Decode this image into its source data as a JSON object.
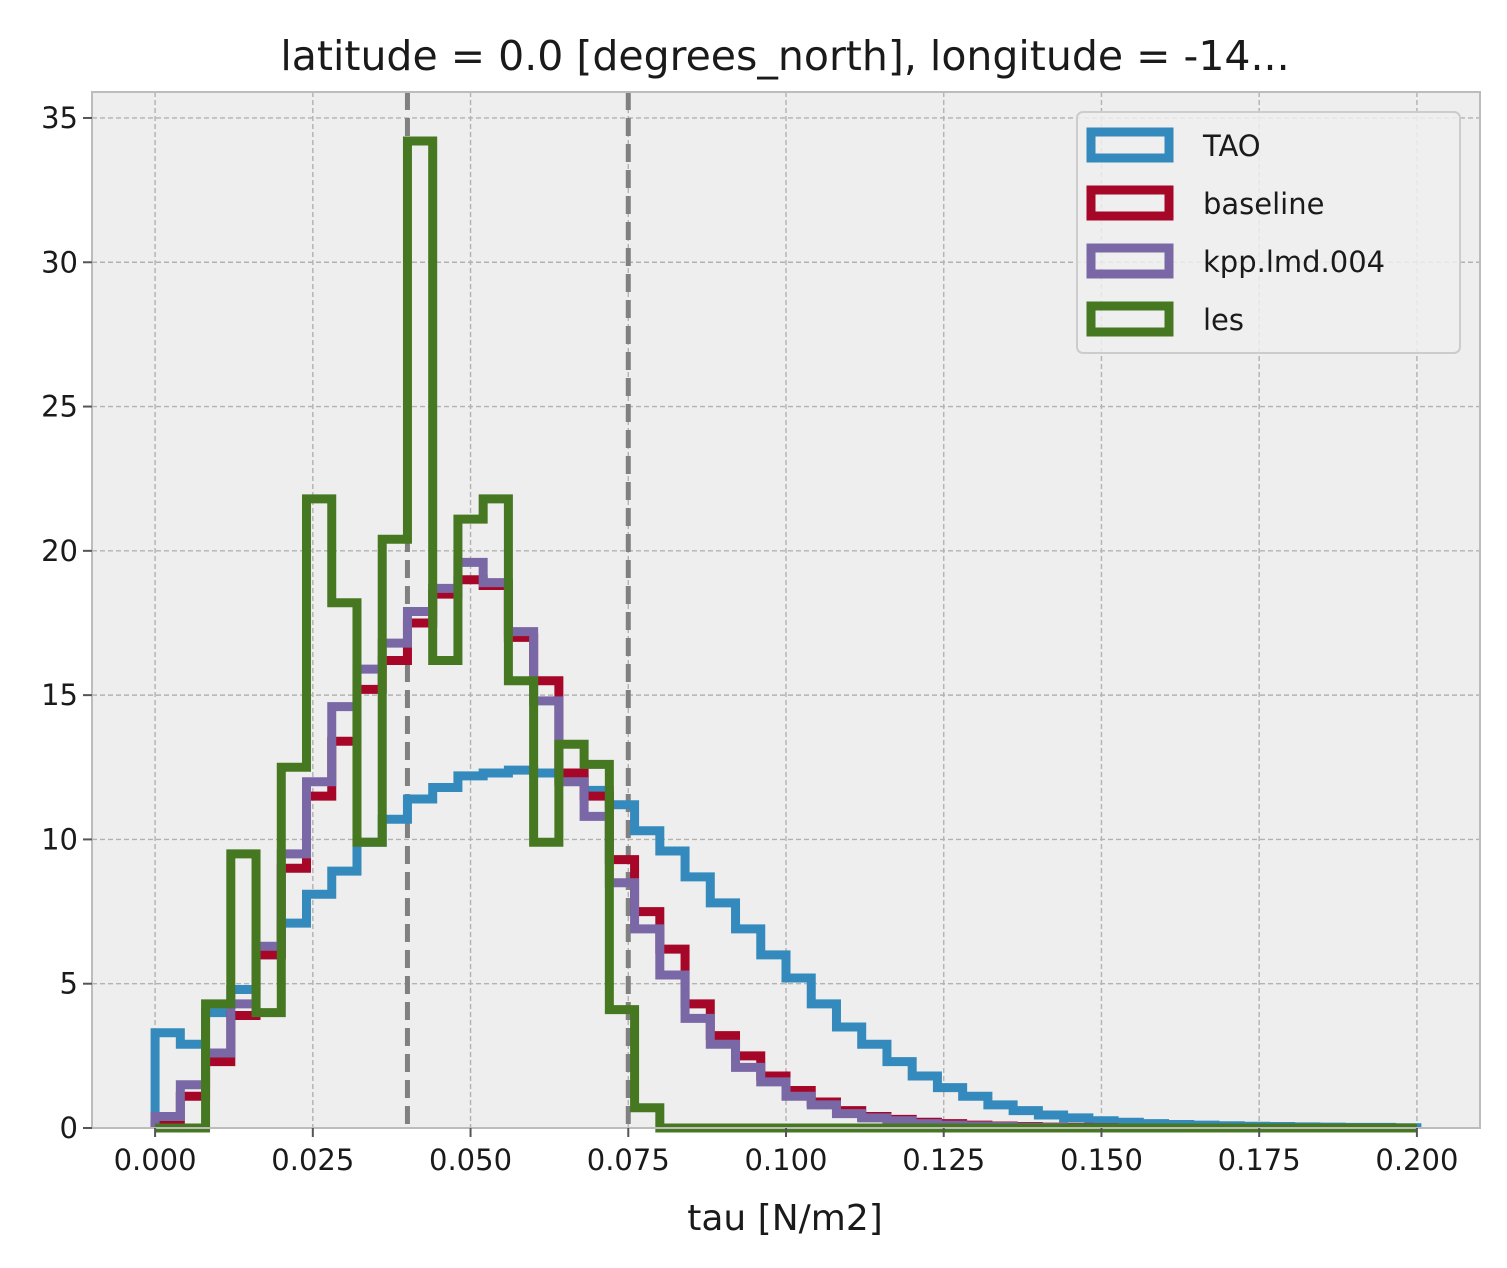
{
  "chart_data": {
    "type": "histogram",
    "title": "latitude = 0.0 [degrees_north], longitude = -14...",
    "xlabel": "tau [N/m2]",
    "ylabel": "",
    "xlim": [
      -0.01,
      0.21
    ],
    "ylim": [
      0,
      35.9
    ],
    "grid": true,
    "legend_position": "top-right",
    "x_ticks": [
      0.0,
      0.025,
      0.05,
      0.075,
      0.1,
      0.125,
      0.15,
      0.175,
      0.2
    ],
    "x_tick_labels": [
      "0.000",
      "0.025",
      "0.050",
      "0.075",
      "0.100",
      "0.125",
      "0.150",
      "0.175",
      "0.200"
    ],
    "y_ticks": [
      0,
      5,
      10,
      15,
      20,
      25,
      30,
      35
    ],
    "y_tick_labels": [
      "0",
      "5",
      "10",
      "15",
      "20",
      "25",
      "30",
      "35"
    ],
    "vlines": [
      0.04,
      0.075
    ],
    "vline_color": "#808080",
    "bin_width": 0.004,
    "bins_start": 0.0,
    "series": [
      {
        "name": "TAO",
        "color": "#348abd",
        "values": [
          3.3,
          2.9,
          4.0,
          4.8,
          6.0,
          7.1,
          8.1,
          8.9,
          9.9,
          10.7,
          11.4,
          11.8,
          12.2,
          12.3,
          12.4,
          12.3,
          12.1,
          11.7,
          11.2,
          10.3,
          9.6,
          8.7,
          7.8,
          6.9,
          6.0,
          5.2,
          4.3,
          3.5,
          2.9,
          2.3,
          1.8,
          1.4,
          1.1,
          0.8,
          0.6,
          0.45,
          0.35,
          0.25,
          0.2,
          0.15,
          0.12,
          0.1,
          0.08,
          0.06,
          0.05,
          0.04,
          0.03,
          0.02,
          0.02,
          0.01
        ]
      },
      {
        "name": "baseline",
        "color": "#a60628",
        "values": [
          0.1,
          1.1,
          2.3,
          3.9,
          6.0,
          9.0,
          11.5,
          13.4,
          15.2,
          16.2,
          17.5,
          18.5,
          19.0,
          18.8,
          17.0,
          15.5,
          12.3,
          11.5,
          9.3,
          7.5,
          6.2,
          4.3,
          3.2,
          2.5,
          1.8,
          1.3,
          0.9,
          0.6,
          0.4,
          0.3,
          0.2,
          0.15,
          0.1,
          0.07,
          0.05,
          0.03,
          0.02,
          0.01,
          0.0,
          0.0,
          0.0,
          0.0,
          0.0,
          0.0,
          0.0,
          0.0,
          0.0,
          0.0,
          0.0,
          0.0
        ]
      },
      {
        "name": "kpp.lmd.004",
        "color": "#7a68a6",
        "values": [
          0.4,
          1.5,
          2.6,
          4.3,
          6.3,
          9.5,
          12.0,
          14.6,
          15.9,
          16.8,
          17.9,
          18.7,
          19.6,
          18.9,
          17.2,
          14.8,
          12.0,
          10.8,
          8.5,
          6.9,
          5.3,
          3.8,
          2.9,
          2.1,
          1.6,
          1.1,
          0.8,
          0.5,
          0.35,
          0.25,
          0.15,
          0.1,
          0.07,
          0.05,
          0.03,
          0.02,
          0.01,
          0.0,
          0.0,
          0.0,
          0.0,
          0.0,
          0.0,
          0.0,
          0.0,
          0.0,
          0.0,
          0.0,
          0.0,
          0.0
        ]
      },
      {
        "name": "les",
        "color": "#467821",
        "values": [
          0.0,
          0.0,
          4.3,
          9.5,
          4.0,
          12.5,
          21.8,
          18.2,
          9.9,
          20.4,
          34.2,
          16.2,
          21.1,
          21.8,
          15.5,
          9.9,
          13.3,
          12.6,
          4.1,
          0.7,
          0.0,
          0.0,
          0.0,
          0.0,
          0.0,
          0.0,
          0.0,
          0.0,
          0.0,
          0.0,
          0.0,
          0.0,
          0.0,
          0.0,
          0.0,
          0.0,
          0.0,
          0.0,
          0.0,
          0.0,
          0.0,
          0.0,
          0.0,
          0.0,
          0.0,
          0.0,
          0.0,
          0.0,
          0.0,
          0.0
        ]
      }
    ]
  }
}
